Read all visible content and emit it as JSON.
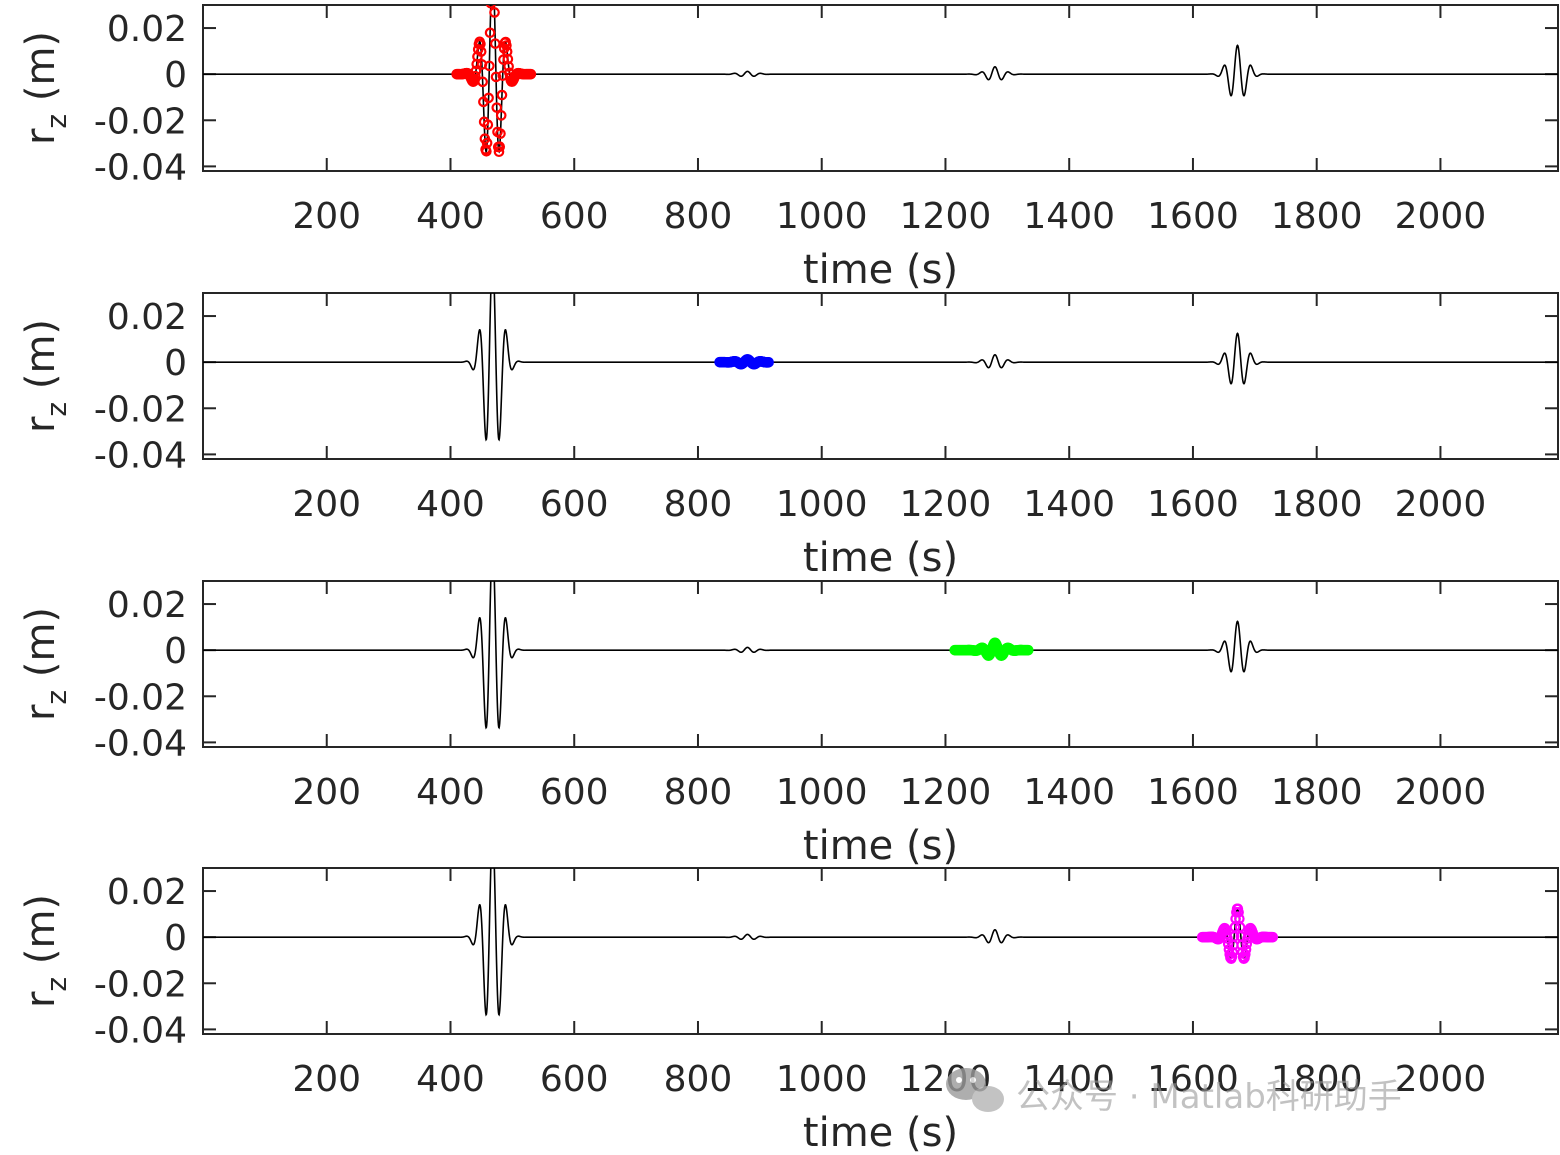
{
  "chart_data": [
    {
      "type": "line",
      "xlabel": "time (s)",
      "ylabel_main": "r",
      "ylabel_sub": "z",
      "ylabel_unit": " (m)",
      "xlim": [
        0,
        2190
      ],
      "ylim": [
        -0.042,
        0.03
      ],
      "xticks": [
        200,
        400,
        600,
        800,
        1000,
        1200,
        1400,
        1600,
        1800,
        2000
      ],
      "xtick_labels": [
        "200",
        "400",
        "600",
        "800",
        "1000",
        "1200",
        "1400",
        "1600",
        "1800",
        "2000"
      ],
      "yticks": [
        0.02,
        0,
        -0.02,
        -0.04
      ],
      "ytick_labels": [
        "0.02",
        "0",
        "-0.02",
        "-0.04"
      ],
      "series": [
        {
          "type": "line",
          "color": "#000000",
          "wave_packets": [
            {
              "center": 468,
              "amplitude": 0.045,
              "period": 22,
              "width": 14
            },
            {
              "center": 880,
              "amplitude": 0.0012,
              "period": 22,
              "width": 14
            },
            {
              "center": 1280,
              "amplitude": 0.0032,
              "period": 22,
              "width": 14
            },
            {
              "center": 1672,
              "amplitude": 0.0125,
              "period": 22,
              "width": 14
            }
          ]
        },
        {
          "type": "scatter",
          "color": "#ff0000",
          "x_range": [
            410,
            530
          ]
        }
      ]
    },
    {
      "type": "line",
      "xlabel": "time (s)",
      "ylabel_main": "r",
      "ylabel_sub": "z",
      "ylabel_unit": " (m)",
      "xlim": [
        0,
        2190
      ],
      "ylim": [
        -0.042,
        0.03
      ],
      "xticks": [
        200,
        400,
        600,
        800,
        1000,
        1200,
        1400,
        1600,
        1800,
        2000
      ],
      "xtick_labels": [
        "200",
        "400",
        "600",
        "800",
        "1000",
        "1200",
        "1400",
        "1600",
        "1800",
        "2000"
      ],
      "yticks": [
        0.02,
        0,
        -0.02,
        -0.04
      ],
      "ytick_labels": [
        "0.02",
        "0",
        "-0.02",
        "-0.04"
      ],
      "series": [
        {
          "type": "line",
          "color": "#000000",
          "wave_packets": [
            {
              "center": 468,
              "amplitude": 0.045,
              "period": 22,
              "width": 14
            },
            {
              "center": 880,
              "amplitude": 0.0012,
              "period": 22,
              "width": 14
            },
            {
              "center": 1280,
              "amplitude": 0.0032,
              "period": 22,
              "width": 14
            },
            {
              "center": 1672,
              "amplitude": 0.0125,
              "period": 22,
              "width": 14
            }
          ]
        },
        {
          "type": "scatter",
          "color": "#0000ff",
          "x_range": [
            835,
            915
          ]
        }
      ]
    },
    {
      "type": "line",
      "xlabel": "time (s)",
      "ylabel_main": "r",
      "ylabel_sub": "z",
      "ylabel_unit": " (m)",
      "xlim": [
        0,
        2190
      ],
      "ylim": [
        -0.042,
        0.03
      ],
      "xticks": [
        200,
        400,
        600,
        800,
        1000,
        1200,
        1400,
        1600,
        1800,
        2000
      ],
      "xtick_labels": [
        "200",
        "400",
        "600",
        "800",
        "1000",
        "1200",
        "1400",
        "1600",
        "1800",
        "2000"
      ],
      "yticks": [
        0.02,
        0,
        -0.02,
        -0.04
      ],
      "ytick_labels": [
        "0.02",
        "0",
        "-0.02",
        "-0.04"
      ],
      "series": [
        {
          "type": "line",
          "color": "#000000",
          "wave_packets": [
            {
              "center": 468,
              "amplitude": 0.045,
              "period": 22,
              "width": 14
            },
            {
              "center": 880,
              "amplitude": 0.0012,
              "period": 22,
              "width": 14
            },
            {
              "center": 1280,
              "amplitude": 0.0032,
              "period": 22,
              "width": 14
            },
            {
              "center": 1672,
              "amplitude": 0.0125,
              "period": 22,
              "width": 14
            }
          ]
        },
        {
          "type": "scatter",
          "color": "#00ff00",
          "x_range": [
            1215,
            1335
          ]
        }
      ]
    },
    {
      "type": "line",
      "xlabel": "time (s)",
      "ylabel_main": "r",
      "ylabel_sub": "z",
      "ylabel_unit": " (m)",
      "xlim": [
        0,
        2190
      ],
      "ylim": [
        -0.042,
        0.03
      ],
      "xticks": [
        200,
        400,
        600,
        800,
        1000,
        1200,
        1400,
        1600,
        1800,
        2000
      ],
      "xtick_labels": [
        "200",
        "400",
        "600",
        "800",
        "1000",
        "1200",
        "1400",
        "1600",
        "1800",
        "2000"
      ],
      "yticks": [
        0.02,
        0,
        -0.02,
        -0.04
      ],
      "ytick_labels": [
        "0.02",
        "0",
        "-0.02",
        "-0.04"
      ],
      "series": [
        {
          "type": "line",
          "color": "#000000",
          "wave_packets": [
            {
              "center": 468,
              "amplitude": 0.045,
              "period": 22,
              "width": 14
            },
            {
              "center": 880,
              "amplitude": 0.0012,
              "period": 22,
              "width": 14
            },
            {
              "center": 1280,
              "amplitude": 0.0032,
              "period": 22,
              "width": 14
            },
            {
              "center": 1672,
              "amplitude": 0.0125,
              "period": 22,
              "width": 14
            }
          ]
        },
        {
          "type": "scatter",
          "color": "#ff00ff",
          "x_range": [
            1615,
            1730
          ]
        }
      ]
    }
  ],
  "watermark": {
    "text": "公众号 · Matlab科研助手",
    "icon": "wechat-icon",
    "color": "#9a9a9a"
  }
}
